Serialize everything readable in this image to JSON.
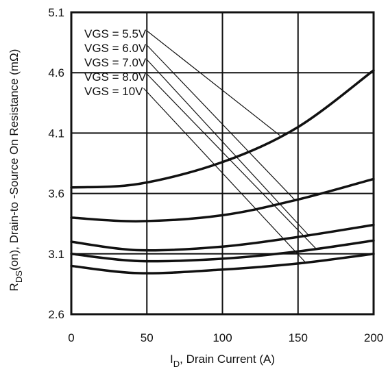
{
  "chart_data": {
    "type": "line",
    "title": "",
    "xlabel": {
      "main": "I",
      "sub": "D",
      "rest": ", Drain Current (A)"
    },
    "ylabel": {
      "main": "R",
      "sub": "DS",
      "rest": "(on),  Drain-to -Source On Resistance (mΩ)"
    },
    "xlim": [
      0,
      200
    ],
    "ylim": [
      2.6,
      5.1
    ],
    "x_ticks": [
      "0",
      "50",
      "100",
      "150",
      "200"
    ],
    "y_ticks": [
      "2.6",
      "3.1",
      "3.6",
      "4.1",
      "4.6",
      "5.1"
    ],
    "grid": true,
    "legend_placement": "top-left",
    "series": [
      {
        "name": "VGS = 5.5V",
        "x": [
          0,
          45,
          100,
          150,
          200
        ],
        "y": [
          3.65,
          3.68,
          3.86,
          4.15,
          4.62
        ]
      },
      {
        "name": "VGS = 6.0V",
        "x": [
          0,
          45,
          100,
          150,
          200
        ],
        "y": [
          3.4,
          3.37,
          3.42,
          3.55,
          3.72
        ]
      },
      {
        "name": "VGS = 7.0V",
        "x": [
          0,
          45,
          100,
          150,
          200
        ],
        "y": [
          3.2,
          3.13,
          3.16,
          3.24,
          3.34
        ]
      },
      {
        "name": "VGS = 8.0V",
        "x": [
          0,
          45,
          100,
          150,
          200
        ],
        "y": [
          3.1,
          3.04,
          3.06,
          3.12,
          3.21
        ]
      },
      {
        "name": "VGS = 10V",
        "x": [
          0,
          45,
          100,
          150,
          200
        ],
        "y": [
          3.0,
          2.94,
          2.97,
          3.02,
          3.1
        ]
      }
    ]
  }
}
